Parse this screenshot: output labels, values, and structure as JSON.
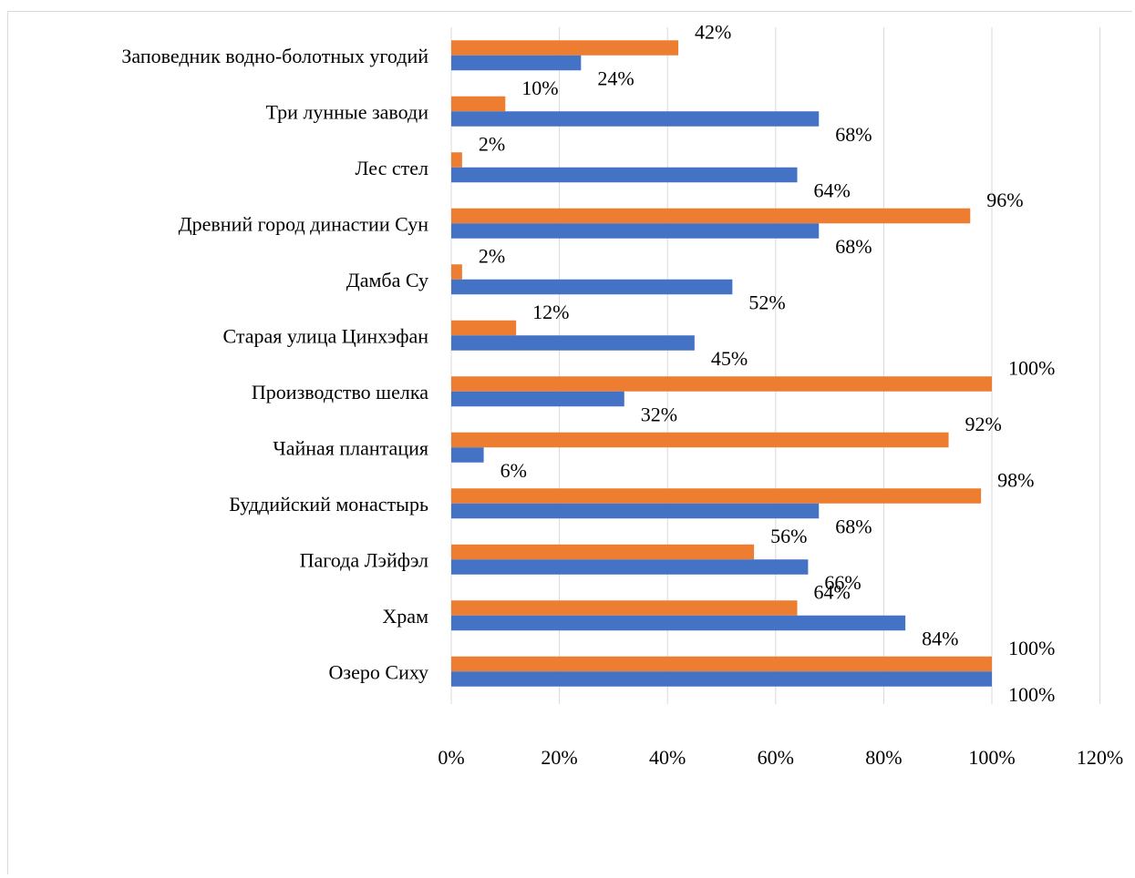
{
  "chart_data": {
    "type": "bar",
    "orientation": "horizontal",
    "title": "",
    "xlabel": "",
    "ylabel": "",
    "categories": [
      "Заповедник водно-болотных угодий",
      "Три лунные заводи",
      "Лес стел",
      "Древний город династии Сун",
      "Дамба Су",
      "Старая улица Цинхэфан",
      "Производство шелка",
      "Чайная плантация",
      "Буддийский монастырь",
      "Пагода Лэйфэл",
      "Храм",
      "Озеро Сиху"
    ],
    "series": [
      {
        "color": "#ED7D31",
        "values": [
          42,
          10,
          2,
          96,
          2,
          12,
          100,
          92,
          98,
          56,
          64,
          100
        ],
        "labels": [
          "42%",
          "10%",
          "2%",
          "96%",
          "2%",
          "12%",
          "100%",
          "92%",
          "98%",
          "56%",
          "64%",
          "100%"
        ]
      },
      {
        "color": "#4472C4",
        "values": [
          24,
          68,
          64,
          68,
          52,
          45,
          32,
          6,
          68,
          66,
          84,
          100
        ],
        "labels": [
          "24%",
          "68%",
          "64%",
          "68%",
          "52%",
          "45%",
          "32%",
          "6%",
          "68%",
          "66%",
          "84%",
          "100%"
        ]
      }
    ],
    "xlim": [
      0,
      120
    ],
    "x_ticks": [
      0,
      20,
      40,
      60,
      80,
      100,
      120
    ],
    "x_tick_labels": [
      "0%",
      "20%",
      "40%",
      "60%",
      "80%",
      "100%",
      "120%"
    ],
    "grid": "vertical",
    "gridline_color": "#d9d9d9",
    "legend": "none"
  }
}
